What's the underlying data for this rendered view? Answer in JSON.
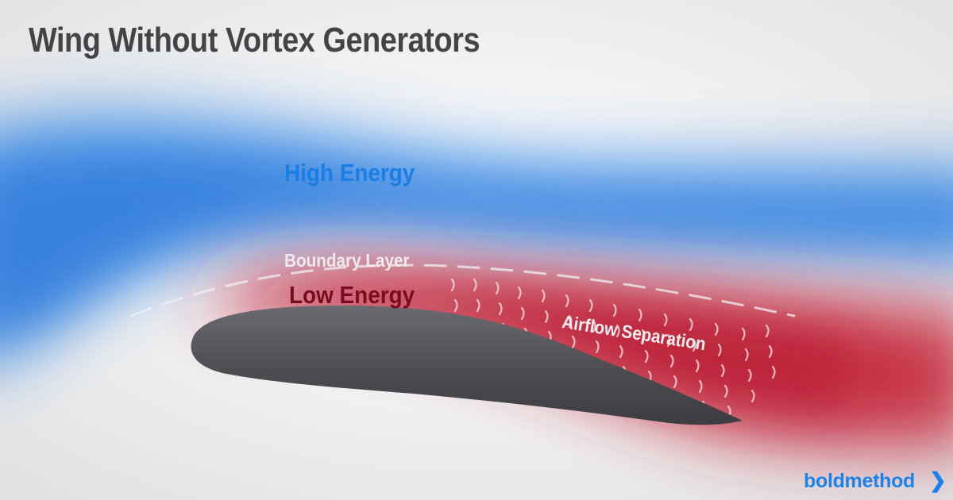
{
  "title": "Wing Without Vortex Generators",
  "labels": {
    "high_energy": "High Energy",
    "boundary_layer": "Boundary Layer",
    "low_energy": "Low Energy",
    "airflow_separation": "Airflow Separation"
  },
  "brand": {
    "name": "boldmethod",
    "icon": "chevron-right-icon"
  },
  "colors": {
    "high_energy": "#1a7ee6",
    "low_energy": "#c62a3c",
    "wing": "#505055",
    "title": "#444448"
  }
}
